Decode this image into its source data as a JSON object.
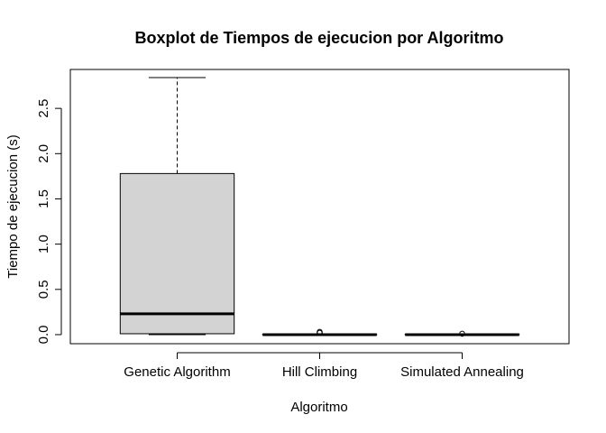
{
  "chart_data": {
    "type": "boxplot",
    "title": "Boxplot de Tiempos de ejecucion por Algoritmo",
    "xlabel": "Algoritmo",
    "ylabel": "Tiempo de ejecucion (s)",
    "ylim": [
      -0.1,
      2.93
    ],
    "yticks": [
      "0.0",
      "0.5",
      "1.0",
      "1.5",
      "2.0",
      "2.5"
    ],
    "categories": [
      "Genetic Algorithm",
      "Hill Climbing",
      "Simulated Annealing"
    ],
    "boxes": [
      {
        "min": 0.0,
        "q1": 0.01,
        "median": 0.23,
        "q3": 1.78,
        "max": 2.84,
        "outliers": []
      },
      {
        "min": 0.0,
        "q1": 0.0,
        "median": 0.0,
        "q3": 0.005,
        "max": 0.005,
        "outliers": [
          0.02,
          0.03
        ]
      },
      {
        "min": 0.0,
        "q1": 0.0,
        "median": 0.0,
        "q3": 0.005,
        "max": 0.005,
        "outliers": [
          0.01
        ]
      }
    ],
    "box_color": "#d3d3d3",
    "grid": false
  }
}
